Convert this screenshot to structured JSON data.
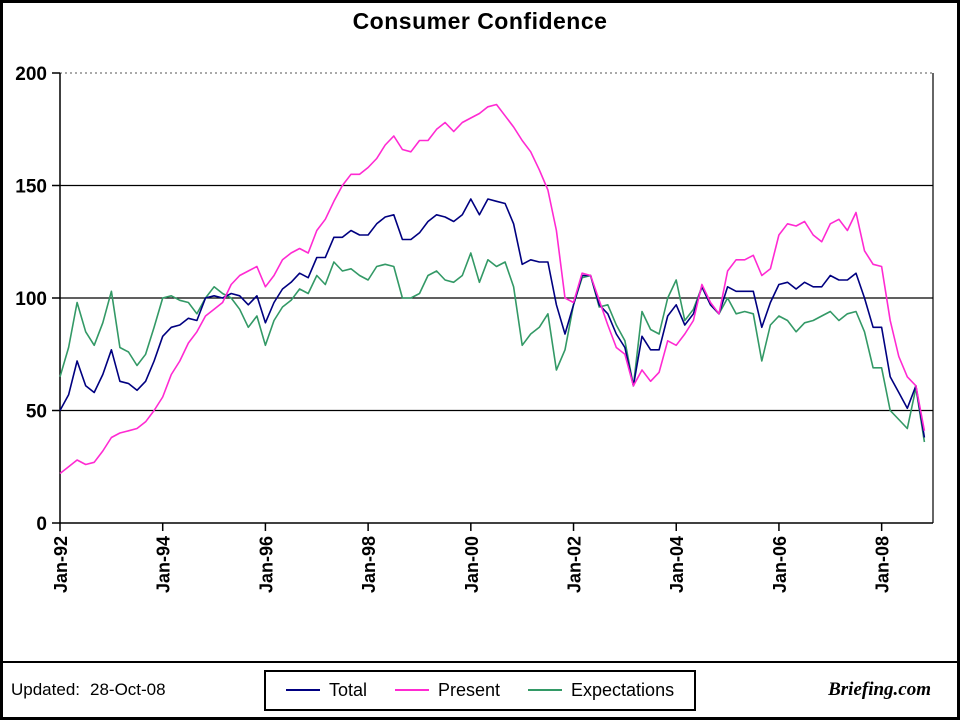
{
  "footer": {
    "updated_label": "Updated:",
    "updated_value": "28-Oct-08",
    "brand": "Briefing.com"
  },
  "chart_data": {
    "type": "line",
    "title": "Consumer Confidence",
    "xlabel": "",
    "ylabel": "",
    "ylim": [
      0,
      200
    ],
    "y_ticks": [
      0,
      50,
      100,
      150,
      200
    ],
    "solid_gridlines_y": [
      50,
      100,
      150
    ],
    "dotted_gridline_y": 200,
    "grid_color": "#000000",
    "dotted_grid_color": "#777777",
    "legend_position": "bottom-center",
    "x_unit": "months since Jan-1992",
    "x_step_months": 2,
    "x_range_months": [
      0,
      204
    ],
    "x_start": "Jan-92",
    "x_end": "Oct-08",
    "x_ticks": [
      {
        "month": 0,
        "label": "Jan-92"
      },
      {
        "month": 24,
        "label": "Jan-94"
      },
      {
        "month": 48,
        "label": "Jan-96"
      },
      {
        "month": 72,
        "label": "Jan-98"
      },
      {
        "month": 96,
        "label": "Jan-00"
      },
      {
        "month": 120,
        "label": "Jan-02"
      },
      {
        "month": 144,
        "label": "Jan-04"
      },
      {
        "month": 168,
        "label": "Jan-06"
      },
      {
        "month": 192,
        "label": "Jan-08"
      }
    ],
    "series": [
      {
        "name": "Total",
        "color": "#000080",
        "values": [
          50,
          57,
          72,
          61,
          58,
          66,
          77,
          63,
          62,
          59,
          63,
          72,
          83,
          87,
          88,
          91,
          90,
          100,
          101,
          100,
          102,
          101,
          97,
          101,
          89,
          98,
          104,
          107,
          111,
          109,
          118,
          118,
          127,
          127,
          130,
          128,
          128,
          133,
          136,
          137,
          126,
          126,
          129,
          134,
          137,
          136,
          134,
          137,
          144,
          137,
          144,
          143,
          142,
          133,
          115,
          117,
          116,
          116,
          97,
          84,
          97,
          110,
          110,
          97,
          93,
          84,
          78,
          61,
          83,
          77,
          77,
          92,
          97,
          88,
          93,
          105,
          97,
          93,
          105,
          103,
          103,
          103,
          87,
          98,
          106,
          107,
          104,
          107,
          105,
          105,
          110,
          108,
          108,
          111,
          100,
          87,
          87,
          65,
          58,
          51,
          61,
          38
        ]
      },
      {
        "name": "Present",
        "color": "#ff2ad2",
        "values": [
          22,
          25,
          28,
          26,
          27,
          32,
          38,
          40,
          41,
          42,
          45,
          50,
          56,
          66,
          72,
          80,
          85,
          92,
          95,
          98,
          106,
          110,
          112,
          114,
          105,
          110,
          117,
          120,
          122,
          120,
          130,
          135,
          143,
          150,
          155,
          155,
          158,
          162,
          168,
          172,
          166,
          165,
          170,
          170,
          175,
          178,
          174,
          178,
          180,
          182,
          185,
          186,
          181,
          176,
          170,
          165,
          157,
          148,
          130,
          100,
          98,
          111,
          110,
          99,
          88,
          78,
          75,
          61,
          68,
          63,
          67,
          81,
          79,
          84,
          90,
          106,
          98,
          93,
          112,
          117,
          117,
          119,
          110,
          113,
          128,
          133,
          132,
          134,
          128,
          125,
          133,
          135,
          130,
          138,
          121,
          115,
          114,
          90,
          74,
          65,
          61,
          41
        ]
      },
      {
        "name": "Expectations",
        "color": "#339966",
        "values": [
          65,
          78,
          98,
          85,
          79,
          89,
          103,
          78,
          76,
          70,
          75,
          87,
          100,
          101,
          99,
          98,
          93,
          100,
          105,
          102,
          100,
          95,
          87,
          92,
          79,
          90,
          96,
          99,
          104,
          102,
          110,
          106,
          116,
          112,
          113,
          110,
          108,
          114,
          115,
          114,
          100,
          100,
          102,
          110,
          112,
          108,
          107,
          110,
          120,
          107,
          117,
          114,
          116,
          105,
          79,
          84,
          87,
          93,
          68,
          77,
          97,
          109,
          110,
          96,
          97,
          88,
          81,
          61,
          94,
          86,
          84,
          100,
          108,
          90,
          95,
          105,
          97,
          93,
          100,
          93,
          94,
          93,
          72,
          88,
          92,
          90,
          85,
          89,
          90,
          92,
          94,
          90,
          93,
          94,
          85,
          69,
          69,
          50,
          46,
          42,
          60,
          36
        ]
      }
    ]
  }
}
